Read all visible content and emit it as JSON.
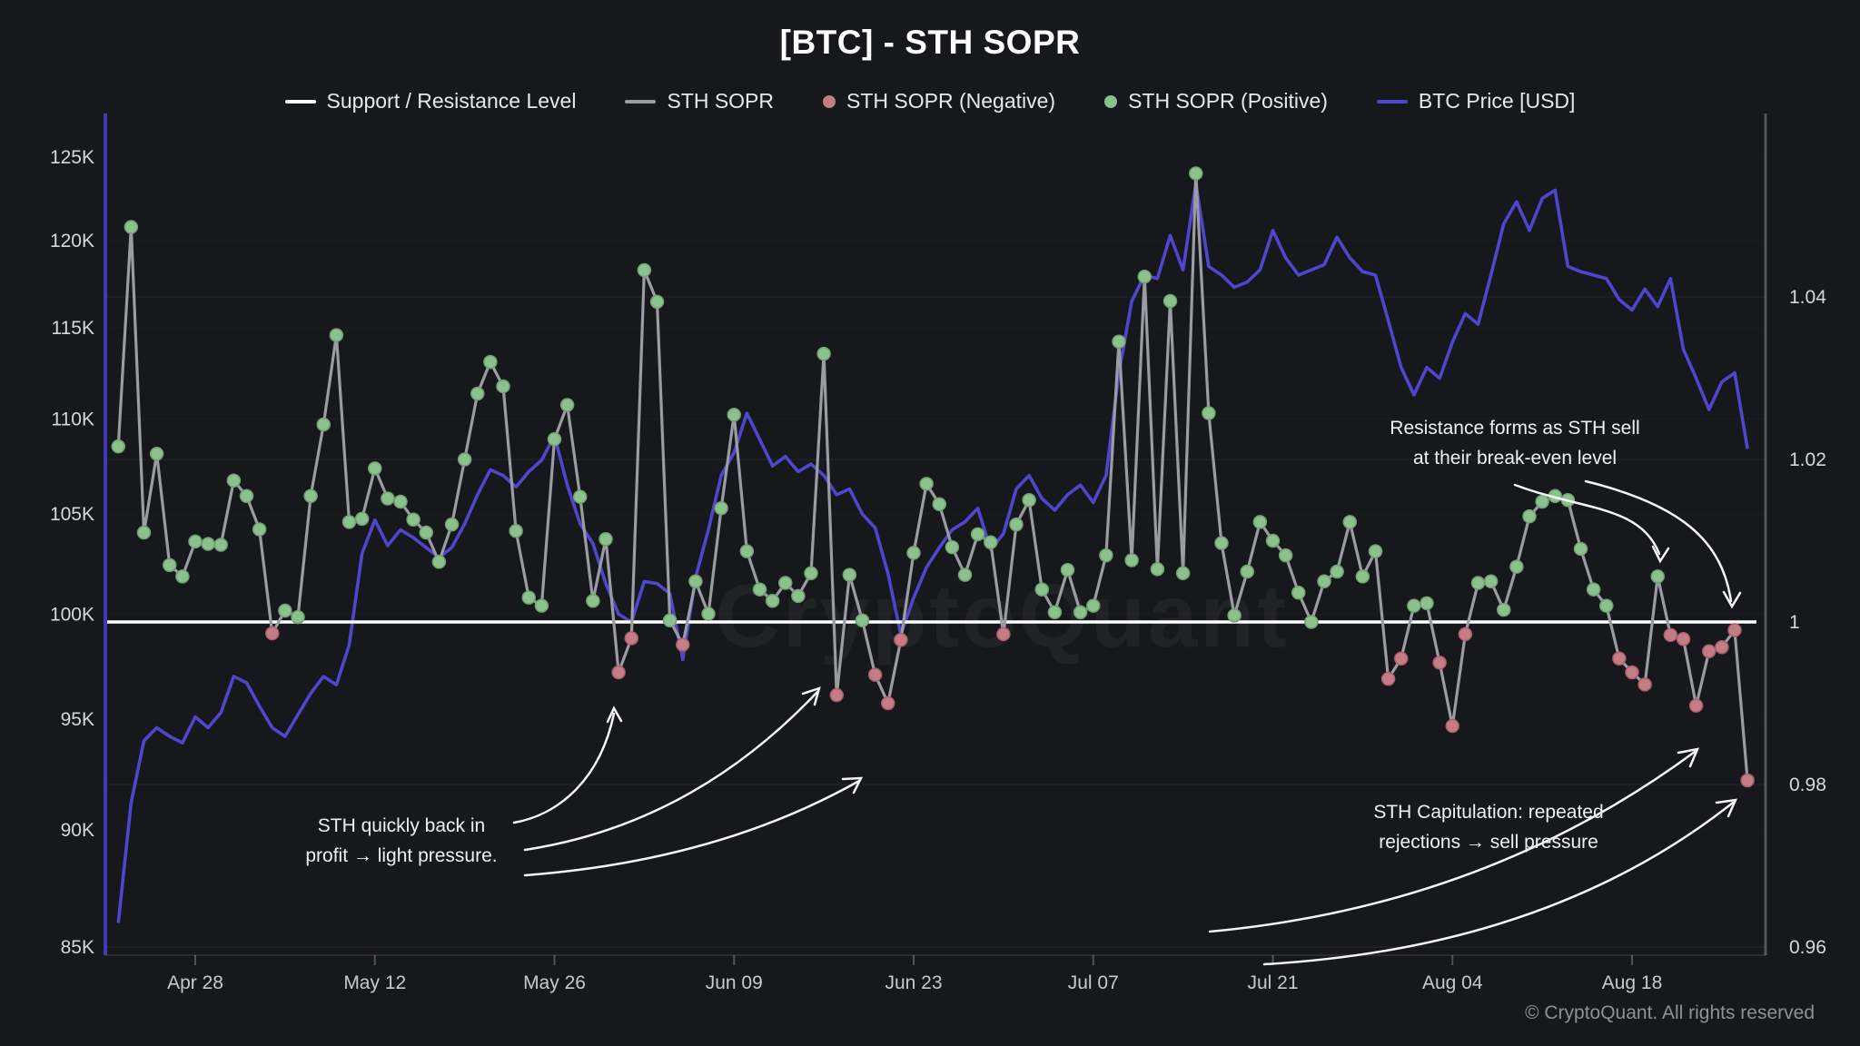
{
  "title": "[BTC] - STH SOPR",
  "watermark": "CryptoQuant",
  "copyright": "© CryptoQuant. All rights reserved",
  "legend": {
    "items": [
      {
        "label": "Support / Resistance Level",
        "swatch": "line",
        "color": "#ffffff"
      },
      {
        "label": "STH SOPR",
        "swatch": "line",
        "color": "#9b9ca3"
      },
      {
        "label": "STH SOPR (Negative)",
        "swatch": "dot",
        "color": "#c47c85"
      },
      {
        "label": "STH SOPR (Positive)",
        "swatch": "dot",
        "color": "#8bc18c"
      },
      {
        "label": "BTC Price [USD]",
        "swatch": "line",
        "color": "#4e46cc"
      }
    ]
  },
  "annotations": {
    "profit": {
      "line1": "STH quickly back in",
      "line2": "profit → light pressure."
    },
    "resistance": {
      "line1": "Resistance forms as STH sell",
      "line2": "at their break-even level"
    },
    "capitulation": {
      "line1": "STH Capitulation: repeated",
      "line2": "rejections → sell pressure"
    }
  },
  "colors": {
    "background": "#17181c",
    "price_line": "#4e46cc",
    "left_axis_line": "#4338b5",
    "right_axis_line": "#55565c",
    "sopr_line": "#9b9ca3",
    "dot_positive": "#8bc18c",
    "dot_negative": "#c47c85",
    "support_line": "#ffffff",
    "axis_text": "#d6d7da",
    "x_axis_text": "#c8c9cd",
    "arrow": "#f5f5f5"
  },
  "chart_data": {
    "type": "line",
    "legend_position": "top",
    "grid": "faint horizontal gridlines at right-axis (SOPR) tick levels",
    "x_unit": "daily points, day index from first plotted day",
    "x_ticks": [
      {
        "label": "Apr 28",
        "day": 6
      },
      {
        "label": "May 12",
        "day": 20
      },
      {
        "label": "May 26",
        "day": 34
      },
      {
        "label": "Jun 09",
        "day": 48
      },
      {
        "label": "Jun 23",
        "day": 62
      },
      {
        "label": "Jul 07",
        "day": 76
      },
      {
        "label": "Jul 21",
        "day": 90
      },
      {
        "label": "Aug 04",
        "day": 104
      },
      {
        "label": "Aug 18",
        "day": 118
      }
    ],
    "left_axis": {
      "title": "BTC Price [USD]",
      "scale": "log",
      "tick_labels": [
        "125K",
        "120K",
        "115K",
        "110K",
        "105K",
        "100K",
        "95K",
        "90K",
        "85K"
      ],
      "tick_values_k": [
        125,
        120,
        115,
        110,
        105,
        100,
        95,
        90,
        85
      ]
    },
    "right_axis": {
      "title": "STH SOPR",
      "scale": "linear",
      "tick_labels": [
        "1.04",
        "1.02",
        "1",
        "0.98",
        "0.96"
      ],
      "tick_values": [
        1.04,
        1.02,
        1,
        0.98,
        0.96
      ]
    },
    "support_resistance_level": 1.0,
    "marker_rule": "STH SOPR markers: green dot (Positive) when value >= 1, red dot (Negative) when value < 1",
    "series": [
      {
        "name": "STH SOPR",
        "axis": "right",
        "values": [
          1.0216,
          1.0486,
          1.011,
          1.0207,
          1.007,
          1.0056,
          1.0099,
          1.0096,
          1.0095,
          1.0174,
          1.0155,
          1.0114,
          0.9986,
          1.0014,
          1.0006,
          1.0155,
          1.0243,
          1.0353,
          1.0123,
          1.0127,
          1.0189,
          1.0152,
          1.0148,
          1.0126,
          1.011,
          1.0074,
          1.012,
          1.02,
          1.0281,
          1.032,
          1.029,
          1.0112,
          1.003,
          1.002,
          1.0225,
          1.0267,
          1.0154,
          1.0026,
          1.0102,
          0.9938,
          0.998,
          1.0433,
          1.0394,
          1.0002,
          0.9972,
          1.005,
          1.001,
          1.014,
          1.0255,
          1.0087,
          1.004,
          1.0026,
          1.0048,
          1.0032,
          1.006,
          1.033,
          0.991,
          1.0058,
          1.0002,
          0.9935,
          0.99,
          0.9978,
          1.0085,
          1.017,
          1.0145,
          1.0092,
          1.0058,
          1.0108,
          1.0098,
          0.9985,
          1.012,
          1.015,
          1.004,
          1.0012,
          1.0064,
          1.0012,
          1.002,
          1.0082,
          1.0345,
          1.0076,
          1.0425,
          1.0065,
          1.0395,
          1.006,
          1.0552,
          1.0257,
          1.0097,
          1.0008,
          1.0062,
          1.0123,
          1.01,
          1.0082,
          1.0036,
          1.0,
          1.005,
          1.0062,
          1.0123,
          1.0056,
          1.0087,
          0.993,
          0.9955,
          1.002,
          1.0023,
          0.995,
          0.9872,
          0.9985,
          1.0048,
          1.005,
          1.0015,
          1.0068,
          1.013,
          1.0148,
          1.0155,
          1.015,
          1.009,
          1.004,
          1.002,
          0.9955,
          0.9938,
          0.9923,
          1.0056,
          0.9984,
          0.9979,
          0.9897,
          0.9964,
          0.9969,
          0.999,
          0.9805
        ]
      },
      {
        "name": "BTC Price [USD]",
        "axis": "left",
        "unit": "thousand USD",
        "values": [
          86.0,
          91.2,
          94.0,
          94.6,
          94.2,
          93.9,
          95.1,
          94.6,
          95.3,
          97.0,
          96.7,
          95.6,
          94.6,
          94.2,
          95.2,
          96.2,
          97.0,
          96.6,
          98.5,
          103.0,
          104.7,
          103.4,
          104.2,
          103.8,
          103.3,
          102.8,
          103.3,
          104.5,
          106.0,
          107.3,
          107.0,
          106.4,
          107.2,
          107.8,
          109.1,
          106.5,
          104.5,
          103.5,
          101.5,
          100.0,
          99.6,
          101.6,
          101.5,
          101.0,
          97.8,
          101.8,
          104.2,
          107.0,
          108.2,
          110.3,
          108.9,
          107.5,
          108.0,
          107.2,
          107.6,
          107.0,
          106.0,
          106.3,
          105.0,
          104.3,
          102.0,
          99.0,
          100.8,
          102.3,
          103.3,
          104.2,
          104.6,
          105.3,
          103.2,
          104.0,
          106.3,
          107.0,
          105.8,
          105.2,
          106.0,
          106.5,
          105.6,
          107.0,
          112.5,
          116.5,
          118.0,
          117.8,
          120.3,
          118.3,
          123.4,
          118.5,
          118.0,
          117.3,
          117.6,
          118.3,
          120.6,
          119.0,
          118.0,
          118.3,
          118.6,
          120.2,
          119.0,
          118.2,
          118.0,
          115.4,
          112.8,
          111.3,
          112.8,
          112.2,
          114.2,
          115.8,
          115.2,
          118.0,
          121.0,
          122.3,
          120.6,
          122.5,
          123.0,
          118.5,
          118.2,
          118.0,
          117.8,
          116.6,
          116.0,
          117.2,
          116.2,
          117.8,
          113.8,
          112.2,
          110.5,
          112.0,
          112.5,
          108.4
        ]
      }
    ]
  }
}
